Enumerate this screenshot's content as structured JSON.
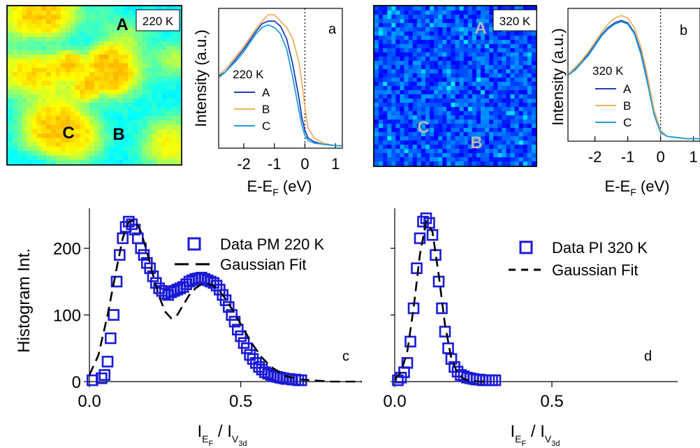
{
  "colors": {
    "series_A": "#1f3fb5",
    "series_B": "#f0b060",
    "series_C": "#1e9fe0",
    "data_marker": "#1a1ad6",
    "fit_line": "#000000"
  },
  "map_220": {
    "temp_label": "220 K",
    "points": [
      "A",
      "B",
      "C"
    ],
    "palette": "jet"
  },
  "map_320": {
    "temp_label": "320 K",
    "points": [
      "A",
      "B",
      "C"
    ],
    "palette": "jet"
  },
  "chart_data": [
    {
      "panel": "a",
      "type": "line",
      "xlabel": "E-E",
      "xlabel_sub": "F",
      "xlabel_unit": " (eV)",
      "ylabel": "Intensity (a.u.)",
      "xlim": [
        -2.8,
        1.2
      ],
      "ylim": [
        0,
        1.1
      ],
      "xticks": [
        -2,
        -1,
        0,
        1
      ],
      "xtick_labels": [
        "-2",
        "-1",
        "0",
        "1"
      ],
      "fermi_line_x": 0,
      "legend_title": "220 K",
      "series": [
        {
          "name": "A",
          "color": "#1f3fb5",
          "x": [
            -2.8,
            -2.6,
            -2.4,
            -2.2,
            -2.0,
            -1.8,
            -1.6,
            -1.4,
            -1.2,
            -1.0,
            -0.8,
            -0.6,
            -0.4,
            -0.2,
            -0.1,
            0.0,
            0.1,
            0.3,
            0.6,
            1.0,
            1.2
          ],
          "y": [
            0.57,
            0.6,
            0.66,
            0.72,
            0.78,
            0.85,
            0.92,
            0.98,
            1.0,
            1.0,
            0.96,
            0.86,
            0.66,
            0.4,
            0.24,
            0.14,
            0.08,
            0.05,
            0.03,
            0.02,
            0.02
          ]
        },
        {
          "name": "B",
          "color": "#f0b060",
          "x": [
            -2.8,
            -2.6,
            -2.4,
            -2.2,
            -2.0,
            -1.8,
            -1.6,
            -1.4,
            -1.2,
            -1.0,
            -0.8,
            -0.6,
            -0.4,
            -0.2,
            -0.1,
            0.0,
            0.1,
            0.3,
            0.6,
            1.0,
            1.2
          ],
          "y": [
            0.58,
            0.62,
            0.68,
            0.74,
            0.8,
            0.87,
            0.94,
            1.0,
            1.05,
            1.05,
            1.0,
            0.95,
            0.86,
            0.68,
            0.52,
            0.32,
            0.16,
            0.08,
            0.04,
            0.02,
            0.02
          ]
        },
        {
          "name": "C",
          "color": "#1e9fe0",
          "x": [
            -2.8,
            -2.6,
            -2.4,
            -2.2,
            -2.0,
            -1.8,
            -1.6,
            -1.4,
            -1.2,
            -1.0,
            -0.8,
            -0.6,
            -0.4,
            -0.2,
            -0.1,
            0.0,
            0.1,
            0.3,
            0.6,
            1.0,
            1.2
          ],
          "y": [
            0.56,
            0.6,
            0.65,
            0.7,
            0.76,
            0.83,
            0.9,
            0.95,
            0.97,
            0.95,
            0.9,
            0.78,
            0.56,
            0.3,
            0.18,
            0.1,
            0.06,
            0.04,
            0.03,
            0.02,
            0.02
          ]
        }
      ]
    },
    {
      "panel": "b",
      "type": "line",
      "xlabel": "E-E",
      "xlabel_sub": "F",
      "xlabel_unit": " (eV)",
      "ylabel": "Intensity (a.u.)",
      "xlim": [
        -2.8,
        1.2
      ],
      "ylim": [
        0,
        1.1
      ],
      "xticks": [
        -2,
        -1,
        0,
        1
      ],
      "xtick_labels": [
        "-2",
        "-1",
        "0",
        "1"
      ],
      "fermi_line_x": 0,
      "legend_title": "320 K",
      "series": [
        {
          "name": "A",
          "color": "#1f3fb5",
          "x": [
            -2.8,
            -2.6,
            -2.4,
            -2.2,
            -2.0,
            -1.8,
            -1.6,
            -1.4,
            -1.2,
            -1.0,
            -0.8,
            -0.6,
            -0.4,
            -0.2,
            0.0,
            0.2,
            0.5,
            0.8,
            1.2
          ],
          "y": [
            0.55,
            0.6,
            0.66,
            0.72,
            0.8,
            0.88,
            0.94,
            0.98,
            1.0,
            0.98,
            0.9,
            0.74,
            0.5,
            0.24,
            0.08,
            0.04,
            0.03,
            0.02,
            0.02
          ]
        },
        {
          "name": "B",
          "color": "#f0b060",
          "x": [
            -2.8,
            -2.6,
            -2.4,
            -2.2,
            -2.0,
            -1.8,
            -1.6,
            -1.4,
            -1.2,
            -1.0,
            -0.8,
            -0.6,
            -0.4,
            -0.2,
            0.0,
            0.2,
            0.5,
            0.8,
            1.2
          ],
          "y": [
            0.56,
            0.61,
            0.67,
            0.74,
            0.82,
            0.9,
            0.97,
            1.02,
            1.04,
            1.02,
            0.94,
            0.78,
            0.54,
            0.26,
            0.09,
            0.04,
            0.03,
            0.02,
            0.02
          ]
        },
        {
          "name": "C",
          "color": "#1e9fe0",
          "x": [
            -2.8,
            -2.6,
            -2.4,
            -2.2,
            -2.0,
            -1.8,
            -1.6,
            -1.4,
            -1.2,
            -1.0,
            -0.8,
            -0.6,
            -0.4,
            -0.2,
            0.0,
            0.2,
            0.5,
            0.8,
            1.2
          ],
          "y": [
            0.55,
            0.59,
            0.65,
            0.71,
            0.79,
            0.87,
            0.93,
            0.97,
            0.99,
            0.97,
            0.89,
            0.72,
            0.48,
            0.22,
            0.07,
            0.04,
            0.03,
            0.02,
            0.02
          ]
        }
      ]
    },
    {
      "panel": "c",
      "type": "scatter",
      "xlabel": "I",
      "xlabel_sub1": "E",
      "xlabel_sub2": "F",
      "xlabel_mid": " / I",
      "xlabel_sub3": "V",
      "xlabel_sub4": "3d",
      "ylabel": "Histogram Int.",
      "xlim": [
        0,
        0.9
      ],
      "ylim": [
        0,
        260
      ],
      "xticks": [
        0.0,
        0.5
      ],
      "xtick_labels": [
        "0.0",
        "0.5"
      ],
      "yticks": [
        0,
        100,
        200
      ],
      "ytick_labels": [
        "0",
        "100",
        "200"
      ],
      "legend": [
        "Data PM 220 K",
        "Gaussian Fit"
      ],
      "series": [
        {
          "name": "Data PM 220 K",
          "kind": "markers",
          "x": [
            0.01,
            0.04,
            0.05,
            0.06,
            0.07,
            0.08,
            0.09,
            0.1,
            0.11,
            0.12,
            0.13,
            0.14,
            0.15,
            0.16,
            0.17,
            0.18,
            0.19,
            0.2,
            0.21,
            0.22,
            0.23,
            0.24,
            0.25,
            0.26,
            0.27,
            0.28,
            0.29,
            0.3,
            0.31,
            0.32,
            0.33,
            0.34,
            0.35,
            0.36,
            0.37,
            0.38,
            0.39,
            0.4,
            0.41,
            0.42,
            0.43,
            0.44,
            0.45,
            0.46,
            0.47,
            0.48,
            0.49,
            0.5,
            0.51,
            0.52,
            0.53,
            0.54,
            0.55,
            0.56,
            0.57,
            0.58,
            0.59,
            0.6,
            0.61,
            0.62,
            0.63,
            0.64,
            0.65,
            0.66,
            0.67,
            0.68,
            0.69,
            0.7
          ],
          "y": [
            2,
            5,
            10,
            30,
            65,
            100,
            150,
            190,
            215,
            232,
            240,
            236,
            228,
            215,
            200,
            190,
            178,
            170,
            158,
            148,
            140,
            136,
            132,
            130,
            134,
            136,
            138,
            140,
            142,
            146,
            150,
            152,
            154,
            155,
            156,
            154,
            152,
            150,
            148,
            144,
            138,
            130,
            122,
            112,
            100,
            90,
            78,
            68,
            58,
            50,
            40,
            34,
            28,
            22,
            18,
            14,
            12,
            10,
            8,
            7,
            6,
            5,
            4,
            4,
            3,
            3,
            2,
            2
          ]
        },
        {
          "name": "Gaussian Fit",
          "kind": "dashed",
          "x": [
            0.0,
            0.03,
            0.06,
            0.09,
            0.11,
            0.13,
            0.15,
            0.17,
            0.19,
            0.21,
            0.23,
            0.25,
            0.27,
            0.29,
            0.31,
            0.33,
            0.35,
            0.37,
            0.39,
            0.41,
            0.43,
            0.45,
            0.48,
            0.51,
            0.54,
            0.57,
            0.6,
            0.65,
            0.7,
            0.8,
            0.9
          ],
          "y": [
            10,
            40,
            100,
            170,
            215,
            240,
            242,
            225,
            195,
            160,
            128,
            105,
            95,
            100,
            115,
            130,
            140,
            146,
            147,
            144,
            136,
            124,
            102,
            78,
            55,
            36,
            22,
            8,
            3,
            0,
            0
          ]
        }
      ]
    },
    {
      "panel": "d",
      "type": "scatter",
      "xlabel": "I",
      "xlabel_sub1": "E",
      "xlabel_sub2": "F",
      "xlabel_mid": " / I",
      "xlabel_sub3": "V",
      "xlabel_sub4": "3d",
      "xlim": [
        0,
        0.9
      ],
      "ylim": [
        0,
        260
      ],
      "xticks": [
        0.0,
        0.5
      ],
      "xtick_labels": [
        "0.0",
        "0.5"
      ],
      "legend": [
        "Data PI 320 K",
        "Gaussian Fit"
      ],
      "series": [
        {
          "name": "Data PI 320 K",
          "kind": "markers",
          "x": [
            0.01,
            0.02,
            0.03,
            0.04,
            0.05,
            0.06,
            0.07,
            0.08,
            0.09,
            0.1,
            0.11,
            0.12,
            0.13,
            0.14,
            0.15,
            0.16,
            0.17,
            0.18,
            0.19,
            0.2,
            0.21,
            0.22,
            0.23,
            0.24,
            0.25,
            0.26,
            0.27,
            0.28,
            0.29,
            0.3,
            0.31,
            0.32
          ],
          "y": [
            2,
            6,
            14,
            28,
            60,
            110,
            170,
            215,
            240,
            245,
            238,
            220,
            190,
            150,
            110,
            75,
            50,
            34,
            22,
            15,
            10,
            8,
            6,
            5,
            4,
            3,
            3,
            2,
            2,
            2,
            2,
            2
          ]
        },
        {
          "name": "Gaussian Fit",
          "kind": "dashed",
          "x": [
            0.0,
            0.02,
            0.04,
            0.06,
            0.08,
            0.1,
            0.12,
            0.14,
            0.16,
            0.18,
            0.2,
            0.22,
            0.24,
            0.27,
            0.3
          ],
          "y": [
            3,
            14,
            45,
            110,
            190,
            240,
            225,
            160,
            85,
            35,
            12,
            4,
            1,
            0,
            0
          ]
        }
      ]
    }
  ],
  "panel_labels": [
    "a",
    "b",
    "c",
    "d"
  ]
}
